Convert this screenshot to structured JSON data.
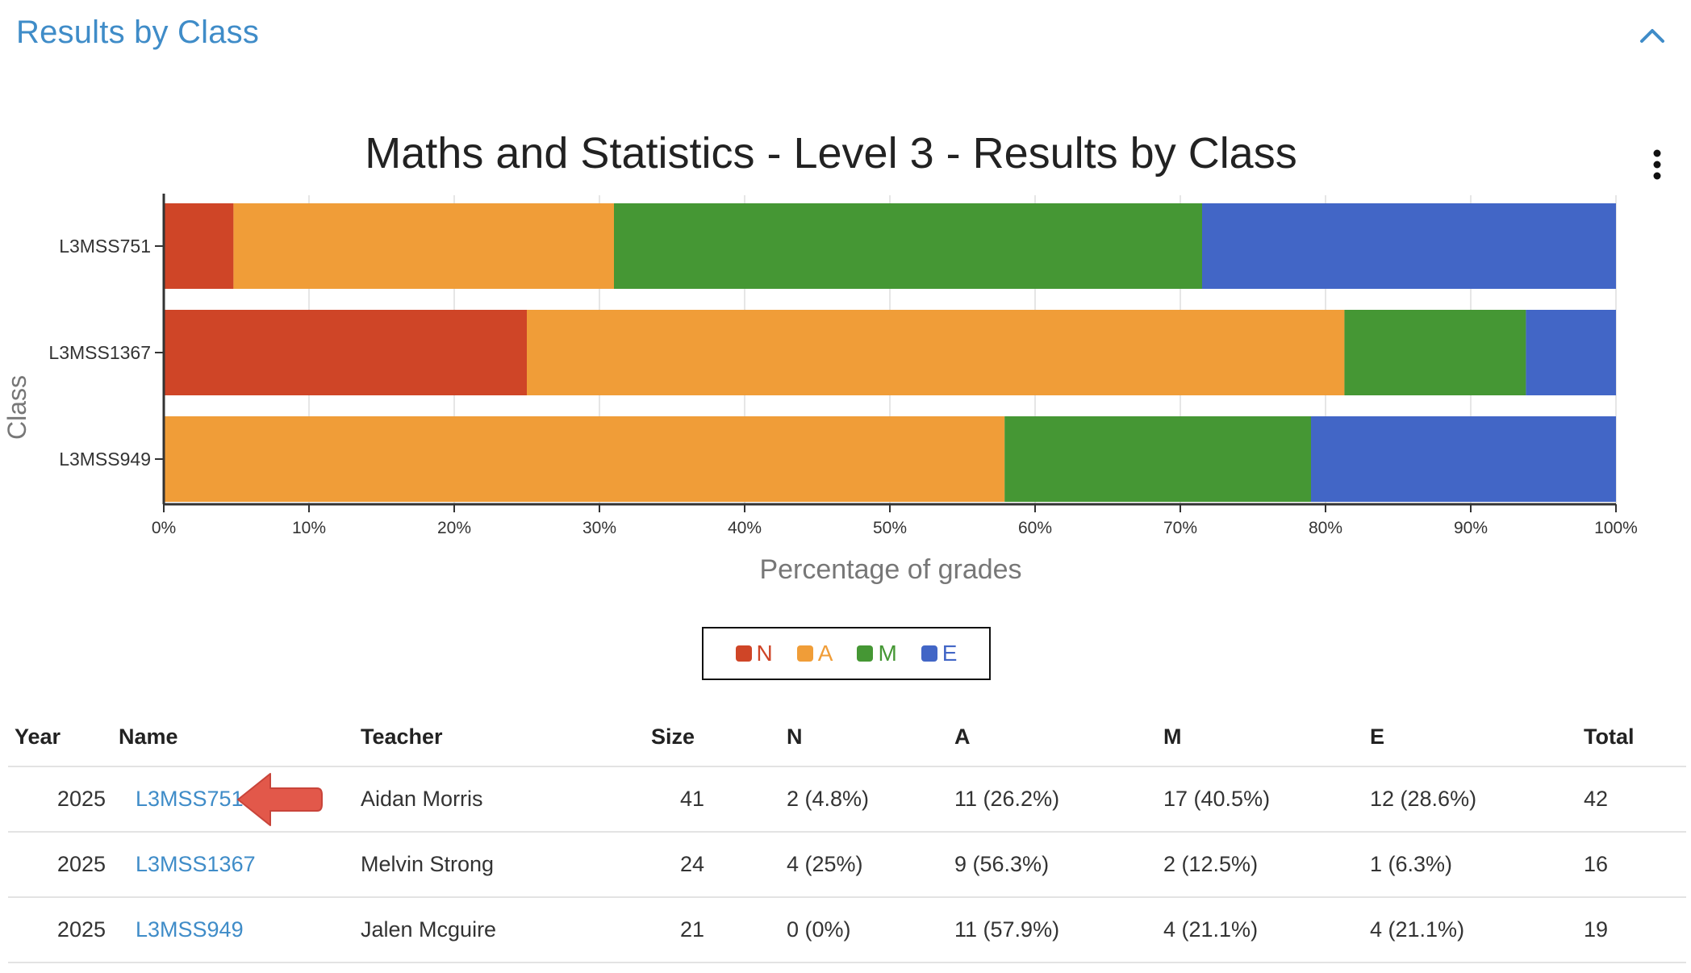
{
  "section": {
    "title": "Results by Class"
  },
  "icons": {
    "collapse": "chevron-up-icon",
    "menu": "kebab-menu-icon",
    "annotation": "red-arrow-annotation"
  },
  "colors": {
    "accent": "#3f8cc8",
    "N": "#cf4527",
    "A": "#f09d38",
    "M": "#459734",
    "E": "#4266c6"
  },
  "chart_data": {
    "type": "bar",
    "orientation": "horizontal",
    "stacked": "percent",
    "title": "Maths and Statistics - Level 3 - Results by Class",
    "xlabel": "Percentage of grades",
    "ylabel": "Class",
    "xlim": [
      0,
      100
    ],
    "x_ticks": [
      "0%",
      "10%",
      "20%",
      "30%",
      "40%",
      "50%",
      "60%",
      "70%",
      "80%",
      "90%",
      "100%"
    ],
    "categories": [
      "L3MSS751",
      "L3MSS1367",
      "L3MSS949"
    ],
    "series": [
      {
        "name": "N",
        "values": [
          4.8,
          25,
          0
        ]
      },
      {
        "name": "A",
        "values": [
          26.2,
          56.3,
          57.9
        ]
      },
      {
        "name": "M",
        "values": [
          40.5,
          12.5,
          21.1
        ]
      },
      {
        "name": "E",
        "values": [
          28.6,
          6.3,
          21.1
        ]
      }
    ],
    "grid": true,
    "legend_position": "bottom-center"
  },
  "legend": [
    "N",
    "A",
    "M",
    "E"
  ],
  "table": {
    "headers": {
      "year": "Year",
      "name": "Name",
      "teacher": "Teacher",
      "size": "Size",
      "n": "N",
      "a": "A",
      "m": "M",
      "e": "E",
      "total": "Total"
    },
    "rows": [
      {
        "year": "2025",
        "name": "L3MSS751",
        "teacher": "Aidan Morris",
        "size": "41",
        "n": "2 (4.8%)",
        "a": "11 (26.2%)",
        "m": "17 (40.5%)",
        "e": "12 (28.6%)",
        "total": "42"
      },
      {
        "year": "2025",
        "name": "L3MSS1367",
        "teacher": "Melvin Strong",
        "size": "24",
        "n": "4 (25%)",
        "a": "9 (56.3%)",
        "m": "2 (12.5%)",
        "e": "1 (6.3%)",
        "total": "16"
      },
      {
        "year": "2025",
        "name": "L3MSS949",
        "teacher": "Jalen Mcguire",
        "size": "21",
        "n": "0 (0%)",
        "a": "11 (57.9%)",
        "m": "4 (21.1%)",
        "e": "4 (21.1%)",
        "total": "19"
      }
    ]
  }
}
